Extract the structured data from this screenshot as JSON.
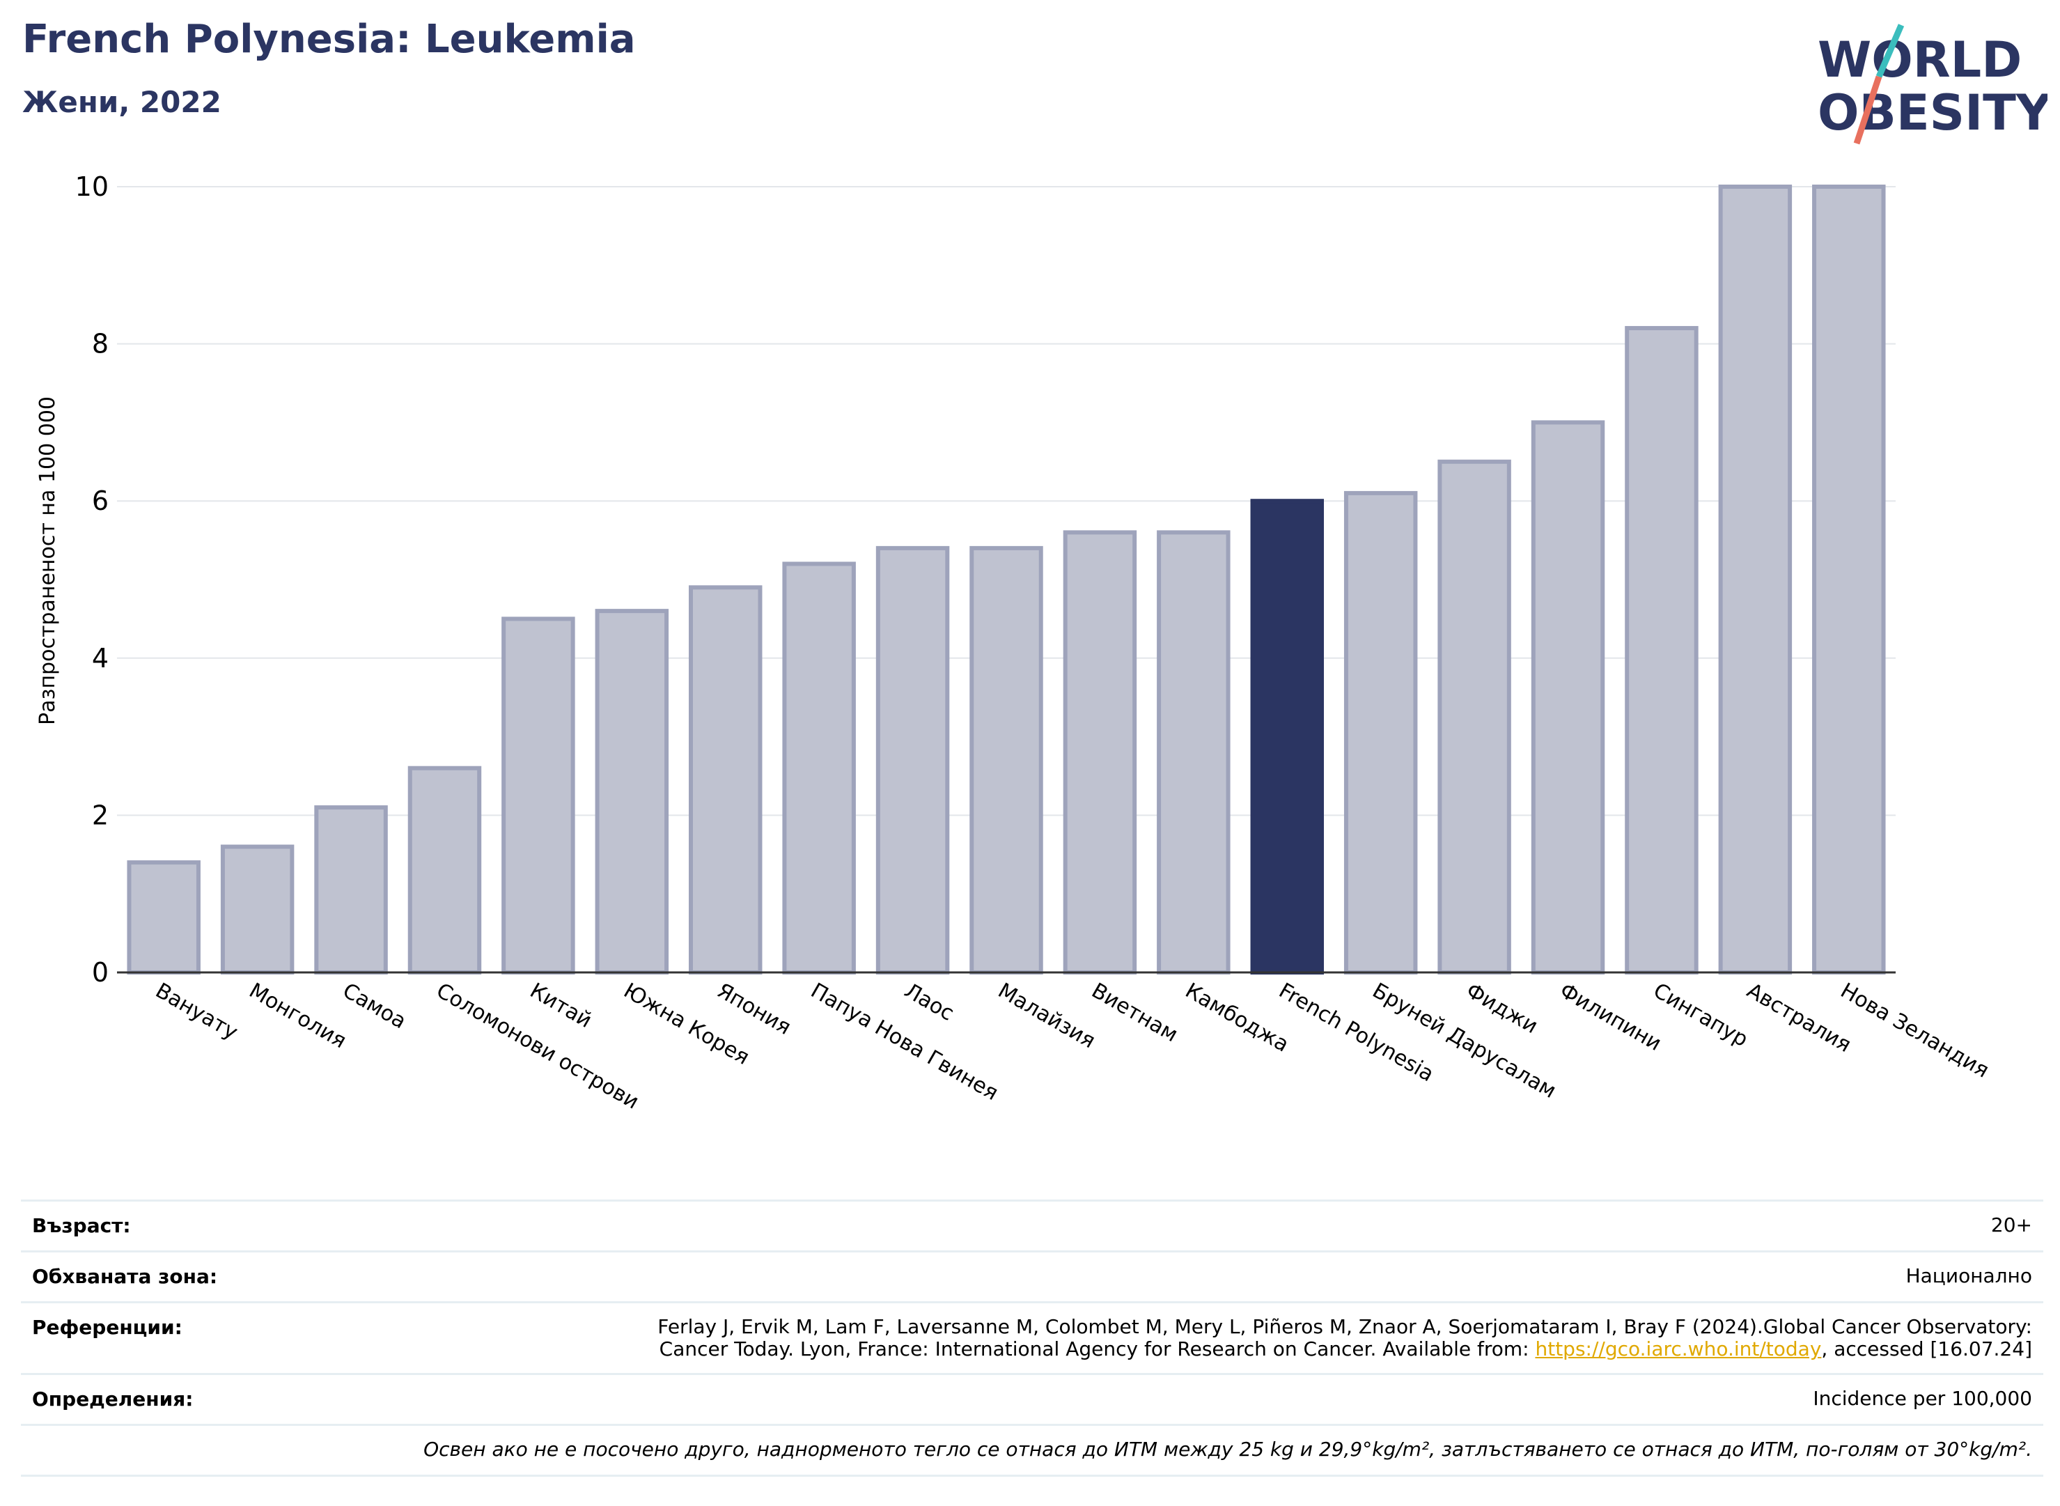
{
  "header": {
    "title": "French Polynesia: Leukemia",
    "subtitle": "Жени, 2022",
    "logo_text_line1": "WORLD",
    "logo_text_line2": "OBESITY"
  },
  "colors": {
    "highlight": "#2b3562",
    "bar": "#bfc2d0",
    "bar_edge": "#9ea3bb",
    "grid": "#e3e6ea",
    "title": "#2b3562",
    "logo_teal": "#3bbdbd",
    "logo_red": "#e8705e"
  },
  "chart_data": {
    "type": "bar",
    "title": "French Polynesia: Leukemia",
    "subtitle": "Жени, 2022",
    "xlabel": "",
    "ylabel": "Разпространеност  на 100 000",
    "ylim": [
      0,
      10
    ],
    "yticks": [
      0,
      2,
      4,
      6,
      8,
      10
    ],
    "grid": true,
    "highlight": "French Polynesia",
    "categories": [
      "Вануату",
      "Монголия",
      "Самоа",
      "Соломонови острови",
      "Китай",
      "Южна Корея",
      "Япония",
      "Папуа Нова Гвинея",
      "Лаос",
      "Малайзия",
      "Виетнам",
      "Камбоджа",
      "French Polynesia",
      "Бруней Дарусалам",
      "Фиджи",
      "Филипини",
      "Сингапур",
      "Австралия",
      "Нова Зеландия"
    ],
    "values": [
      1.4,
      1.6,
      2.1,
      2.6,
      4.5,
      4.6,
      4.9,
      5.2,
      5.4,
      5.4,
      5.6,
      5.6,
      6.0,
      6.1,
      6.5,
      7.0,
      8.2,
      10.0,
      10.0
    ]
  },
  "info": {
    "age_label": "Възраст:",
    "age_value": "20+",
    "area_label": "Обхваната зона:",
    "area_value": "Национално",
    "refs_label": "Референции:",
    "refs_line1": "Ferlay J, Ervik M, Lam F, Laversanne M, Colombet M, Mery L, Piñeros M, Znaor A, Soerjomataram I, Bray F (2024).Global Cancer Observatory:",
    "refs_line2_pre": "Cancer Today. Lyon, France: International Agency for Research on Cancer. Available from: ",
    "refs_link": "https://gco.iarc.who.int/today",
    "refs_line2_post": ", accessed [16.07.24]",
    "defs_label": "Определения:",
    "defs_value": "Incidence per 100,000",
    "note": "Освен ако не е посочено друго, наднорменото тегло се отнася до ИТМ между 25 kg и 29,9°kg/m², затлъстяването се отнася до ИТМ, по-голям от 30°kg/m²."
  }
}
